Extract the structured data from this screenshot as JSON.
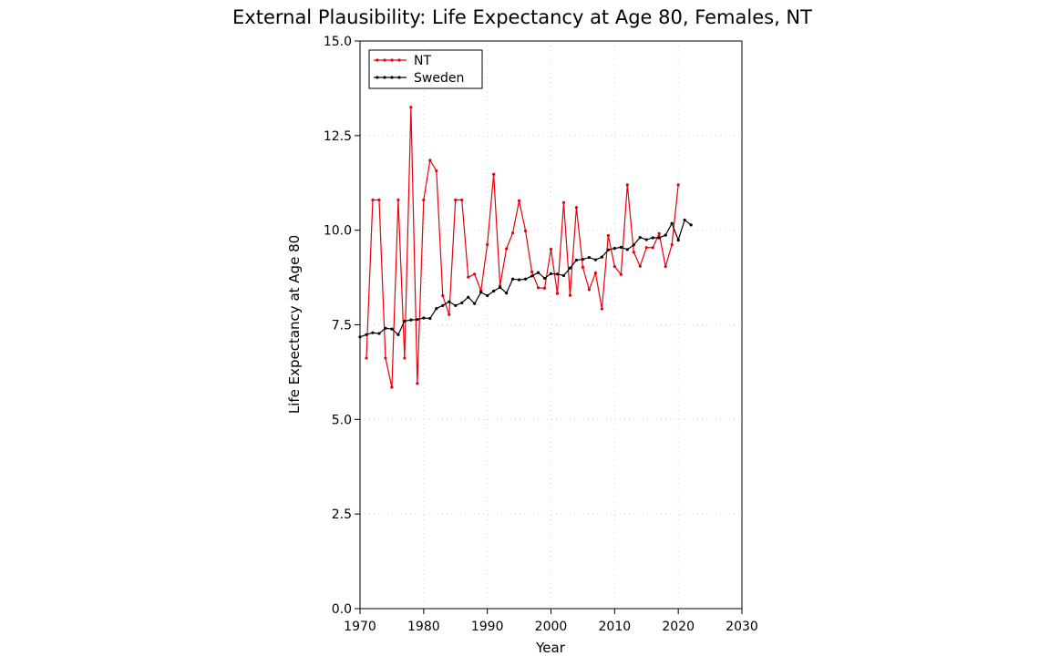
{
  "chart_data": {
    "type": "line",
    "title": "External Plausibility: Life Expectancy at Age 80, Females, NT",
    "xlabel": "Year",
    "ylabel": "Life Expectancy at Age 80",
    "xlim": [
      1970,
      2030
    ],
    "ylim": [
      0,
      15
    ],
    "x_ticks": [
      1970,
      1980,
      1990,
      2000,
      2010,
      2020,
      2030
    ],
    "y_ticks": [
      0,
      2.5,
      5,
      7.5,
      10,
      12.5,
      15
    ],
    "x_tick_labels": [
      "1970",
      "1980",
      "1990",
      "2000",
      "2010",
      "2020",
      "2030"
    ],
    "y_tick_labels": [
      "0.0",
      "2.5",
      "5.0",
      "7.5",
      "10.0",
      "12.5",
      "15.0"
    ],
    "grid": true,
    "legend_position": "top-left",
    "series": [
      {
        "name": "NT",
        "color": "#e8000b",
        "x": [
          1971,
          1972,
          1973,
          1974,
          1975,
          1976,
          1977,
          1978,
          1979,
          1980,
          1981,
          1982,
          1983,
          1984,
          1985,
          1986,
          1987,
          1988,
          1989,
          1990,
          1991,
          1992,
          1993,
          1994,
          1995,
          1996,
          1997,
          1998,
          1999,
          2000,
          2001,
          2002,
          2003,
          2004,
          2005,
          2006,
          2007,
          2008,
          2009,
          2010,
          2011,
          2012,
          2013,
          2014,
          2015,
          2016,
          2017,
          2018,
          2019,
          2020
        ],
        "y": [
          6.62,
          10.8,
          10.8,
          6.62,
          5.85,
          10.8,
          6.62,
          13.25,
          5.95,
          10.8,
          11.85,
          11.57,
          8.27,
          7.77,
          10.8,
          10.8,
          8.76,
          8.84,
          8.4,
          9.62,
          11.48,
          8.53,
          9.51,
          9.93,
          10.78,
          9.98,
          8.9,
          8.48,
          8.47,
          9.5,
          8.33,
          10.73,
          8.28,
          10.6,
          9.02,
          8.43,
          8.87,
          7.92,
          9.86,
          9.04,
          8.83,
          11.2,
          9.42,
          9.05,
          9.54,
          9.54,
          9.91,
          9.04,
          9.62,
          11.2
        ]
      },
      {
        "name": "Sweden",
        "color": "#000000",
        "x": [
          1970,
          1971,
          1972,
          1973,
          1974,
          1975,
          1976,
          1977,
          1978,
          1979,
          1980,
          1981,
          1982,
          1983,
          1984,
          1985,
          1986,
          1987,
          1988,
          1989,
          1990,
          1991,
          1992,
          1993,
          1994,
          1995,
          1996,
          1997,
          1998,
          1999,
          2000,
          2001,
          2002,
          2003,
          2004,
          2005,
          2006,
          2007,
          2008,
          2009,
          2010,
          2011,
          2012,
          2013,
          2014,
          2015,
          2016,
          2017,
          2018,
          2019,
          2020,
          2021,
          2022
        ],
        "y": [
          7.18,
          7.24,
          7.29,
          7.27,
          7.41,
          7.39,
          7.24,
          7.6,
          7.63,
          7.64,
          7.68,
          7.67,
          7.93,
          8.01,
          8.11,
          8.01,
          8.08,
          8.23,
          8.06,
          8.36,
          8.27,
          8.39,
          8.49,
          8.34,
          8.71,
          8.69,
          8.71,
          8.79,
          8.88,
          8.73,
          8.85,
          8.84,
          8.8,
          9.0,
          9.21,
          9.23,
          9.28,
          9.22,
          9.29,
          9.48,
          9.52,
          9.55,
          9.49,
          9.61,
          9.81,
          9.75,
          9.8,
          9.8,
          9.87,
          10.18,
          9.74,
          10.27,
          10.14
        ]
      }
    ]
  }
}
